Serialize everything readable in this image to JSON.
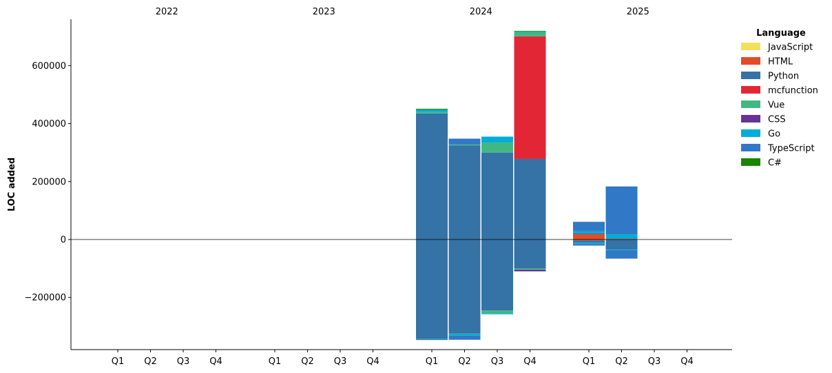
{
  "chart_data": {
    "type": "bar",
    "stacked": true,
    "ylabel": "LOC added",
    "ylim": [
      -380000,
      760000
    ],
    "yticks": [
      -200000,
      0,
      200000,
      400000,
      600000
    ],
    "ytick_labels": [
      "−200000",
      "0",
      "200000",
      "400000",
      "600000"
    ],
    "year_groups": [
      "2022",
      "2023",
      "2024",
      "2025"
    ],
    "quarter_labels": [
      "Q1",
      "Q2",
      "Q3",
      "Q4"
    ],
    "legend": {
      "title": "Language",
      "placement": "right",
      "entries": [
        "JavaScript",
        "HTML",
        "Python",
        "mcfunction",
        "Vue",
        "CSS",
        "Go",
        "TypeScript",
        "C#"
      ]
    },
    "colors": {
      "JavaScript": "#f1e05a",
      "HTML": "#e34c26",
      "Python": "#3572a5",
      "mcfunction": "#e32636",
      "Vue": "#41b883",
      "CSS": "#663399",
      "Go": "#00add8",
      "TypeScript": "#3178c6",
      "C#": "#178600"
    },
    "series": [
      {
        "name": "JavaScript",
        "positive": [
          0,
          0,
          0,
          0,
          0,
          0,
          0,
          0,
          0,
          0,
          0,
          0,
          0,
          0,
          0,
          0
        ],
        "negative": [
          0,
          0,
          0,
          0,
          0,
          0,
          0,
          0,
          0,
          0,
          0,
          0,
          0,
          0,
          0,
          0
        ]
      },
      {
        "name": "HTML",
        "positive": [
          0,
          0,
          0,
          0,
          0,
          0,
          0,
          0,
          0,
          0,
          0,
          0,
          18000,
          2000,
          0,
          0
        ],
        "negative": [
          0,
          0,
          0,
          0,
          0,
          0,
          0,
          0,
          0,
          0,
          0,
          0,
          -3000,
          0,
          0,
          0
        ]
      },
      {
        "name": "Python",
        "positive": [
          0,
          0,
          0,
          0,
          0,
          0,
          0,
          0,
          435000,
          325000,
          300000,
          278000,
          4000,
          2000,
          0,
          0
        ],
        "negative": [
          0,
          0,
          0,
          0,
          0,
          0,
          0,
          0,
          -343000,
          -325000,
          -245000,
          -100000,
          -8000,
          -35000,
          0,
          0
        ]
      },
      {
        "name": "mcfunction",
        "positive": [
          0,
          0,
          0,
          0,
          0,
          0,
          0,
          0,
          0,
          0,
          0,
          423000,
          0,
          0,
          0,
          0
        ],
        "negative": [
          0,
          0,
          0,
          0,
          0,
          0,
          0,
          0,
          0,
          0,
          0,
          0,
          0,
          0,
          0,
          0
        ]
      },
      {
        "name": "Vue",
        "positive": [
          0,
          0,
          0,
          0,
          0,
          0,
          0,
          0,
          5000,
          3000,
          35000,
          15000,
          0,
          0,
          0,
          0
        ],
        "negative": [
          0,
          0,
          0,
          0,
          0,
          0,
          0,
          0,
          -1000,
          -1000,
          -10000,
          -4000,
          0,
          0,
          0,
          0
        ]
      },
      {
        "name": "CSS",
        "positive": [
          0,
          0,
          0,
          0,
          0,
          0,
          0,
          0,
          0,
          0,
          0,
          0,
          0,
          0,
          0,
          0
        ],
        "negative": [
          0,
          0,
          0,
          0,
          0,
          0,
          0,
          0,
          0,
          0,
          0,
          -6000,
          0,
          0,
          0,
          0
        ]
      },
      {
        "name": "Go",
        "positive": [
          0,
          0,
          0,
          0,
          0,
          0,
          0,
          0,
          8000,
          0,
          20000,
          2000,
          7000,
          14000,
          0,
          0
        ],
        "negative": [
          0,
          0,
          0,
          0,
          0,
          0,
          0,
          0,
          -1000,
          -6000,
          -3000,
          0,
          -4000,
          -3000,
          0,
          0
        ]
      },
      {
        "name": "TypeScript",
        "positive": [
          0,
          0,
          0,
          0,
          0,
          0,
          0,
          0,
          0,
          20000,
          0,
          0,
          32000,
          165000,
          0,
          0
        ],
        "negative": [
          0,
          0,
          0,
          0,
          0,
          0,
          0,
          0,
          -2000,
          -14000,
          0,
          0,
          -6000,
          -28000,
          0,
          0
        ]
      },
      {
        "name": "C#",
        "positive": [
          0,
          0,
          0,
          0,
          0,
          0,
          0,
          0,
          3000,
          0,
          0,
          2000,
          0,
          0,
          0,
          0
        ],
        "negative": [
          0,
          0,
          0,
          0,
          0,
          0,
          0,
          0,
          0,
          0,
          0,
          0,
          0,
          0,
          0,
          0
        ]
      }
    ]
  }
}
